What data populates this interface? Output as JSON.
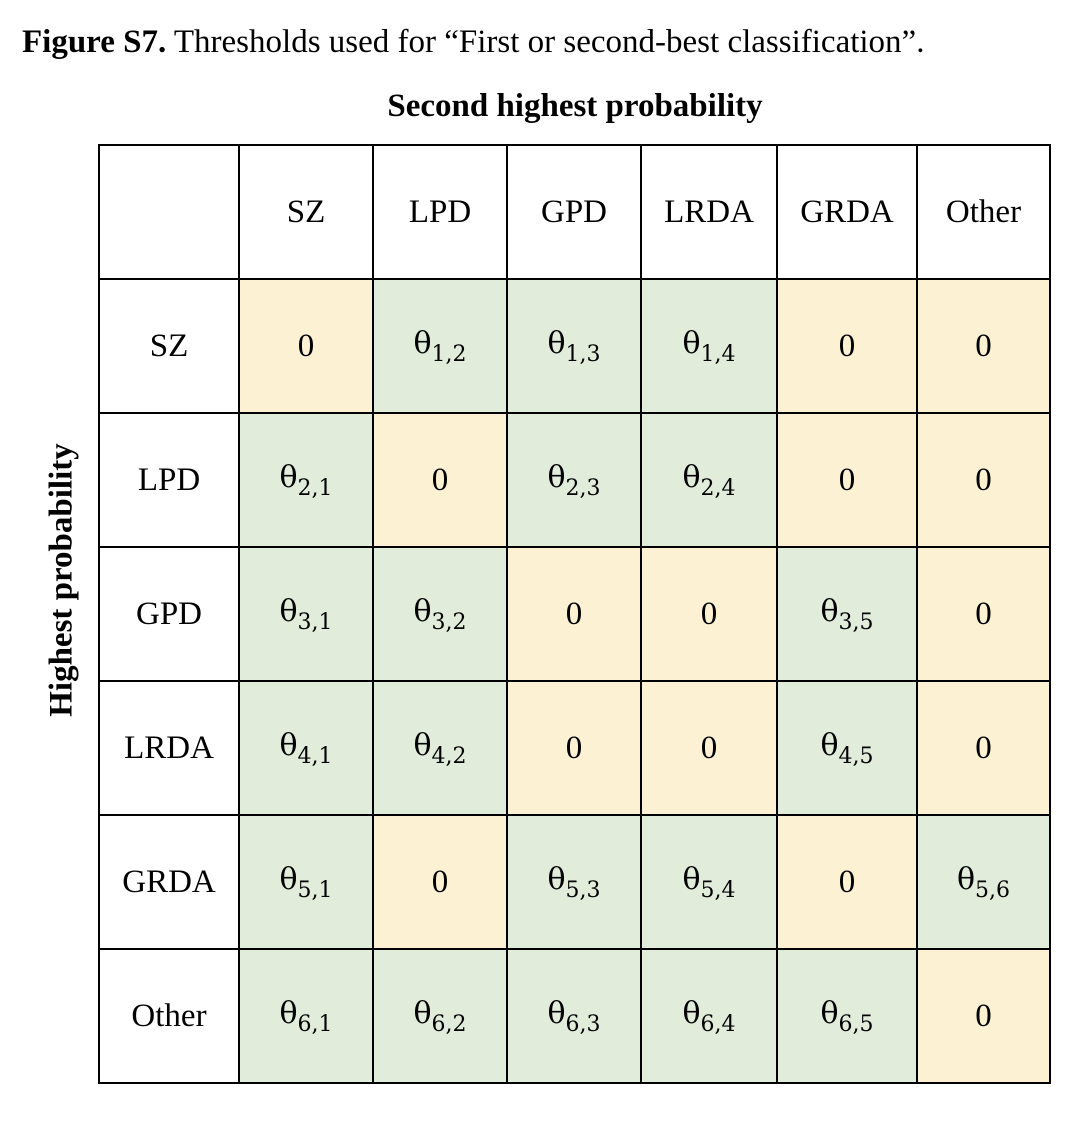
{
  "title": {
    "label": "Figure S7.",
    "text": "Thresholds used for “First or second-best classification”."
  },
  "column_axis_title": "Second highest probability",
  "row_axis_title": "Highest probability",
  "table": {
    "columns": [
      "SZ",
      "LPD",
      "GPD",
      "LRDA",
      "GRDA",
      "Other"
    ],
    "rows": [
      {
        "header": "SZ",
        "cells": [
          {
            "text": "0"
          },
          {
            "text": "θ",
            "sub": "1,2"
          },
          {
            "text": "θ",
            "sub": "1,3"
          },
          {
            "text": "θ",
            "sub": "1,4"
          },
          {
            "text": "0"
          },
          {
            "text": "0"
          }
        ]
      },
      {
        "header": "LPD",
        "cells": [
          {
            "text": "θ",
            "sub": "2,1"
          },
          {
            "text": "0"
          },
          {
            "text": "θ",
            "sub": "2,3"
          },
          {
            "text": "θ",
            "sub": "2,4"
          },
          {
            "text": "0"
          },
          {
            "text": "0"
          }
        ]
      },
      {
        "header": "GPD",
        "cells": [
          {
            "text": "θ",
            "sub": "3,1"
          },
          {
            "text": "θ",
            "sub": "3,2"
          },
          {
            "text": "0"
          },
          {
            "text": "0"
          },
          {
            "text": "θ",
            "sub": "3,5"
          },
          {
            "text": "0"
          }
        ]
      },
      {
        "header": "LRDA",
        "cells": [
          {
            "text": "θ",
            "sub": "4,1"
          },
          {
            "text": "θ",
            "sub": "4,2"
          },
          {
            "text": "0"
          },
          {
            "text": "0"
          },
          {
            "text": "θ",
            "sub": "4,5"
          },
          {
            "text": "0"
          }
        ]
      },
      {
        "header": "GRDA",
        "cells": [
          {
            "text": "θ",
            "sub": "5,1"
          },
          {
            "text": "0"
          },
          {
            "text": "θ",
            "sub": "5,3"
          },
          {
            "text": "θ",
            "sub": "5,4"
          },
          {
            "text": "0"
          },
          {
            "text": "θ",
            "sub": "5,6"
          }
        ]
      },
      {
        "header": "Other",
        "cells": [
          {
            "text": "θ",
            "sub": "6,1"
          },
          {
            "text": "θ",
            "sub": "6,2"
          },
          {
            "text": "θ",
            "sub": "6,3"
          },
          {
            "text": "θ",
            "sub": "6,4"
          },
          {
            "text": "θ",
            "sub": "6,5"
          },
          {
            "text": "0"
          }
        ]
      }
    ]
  }
}
